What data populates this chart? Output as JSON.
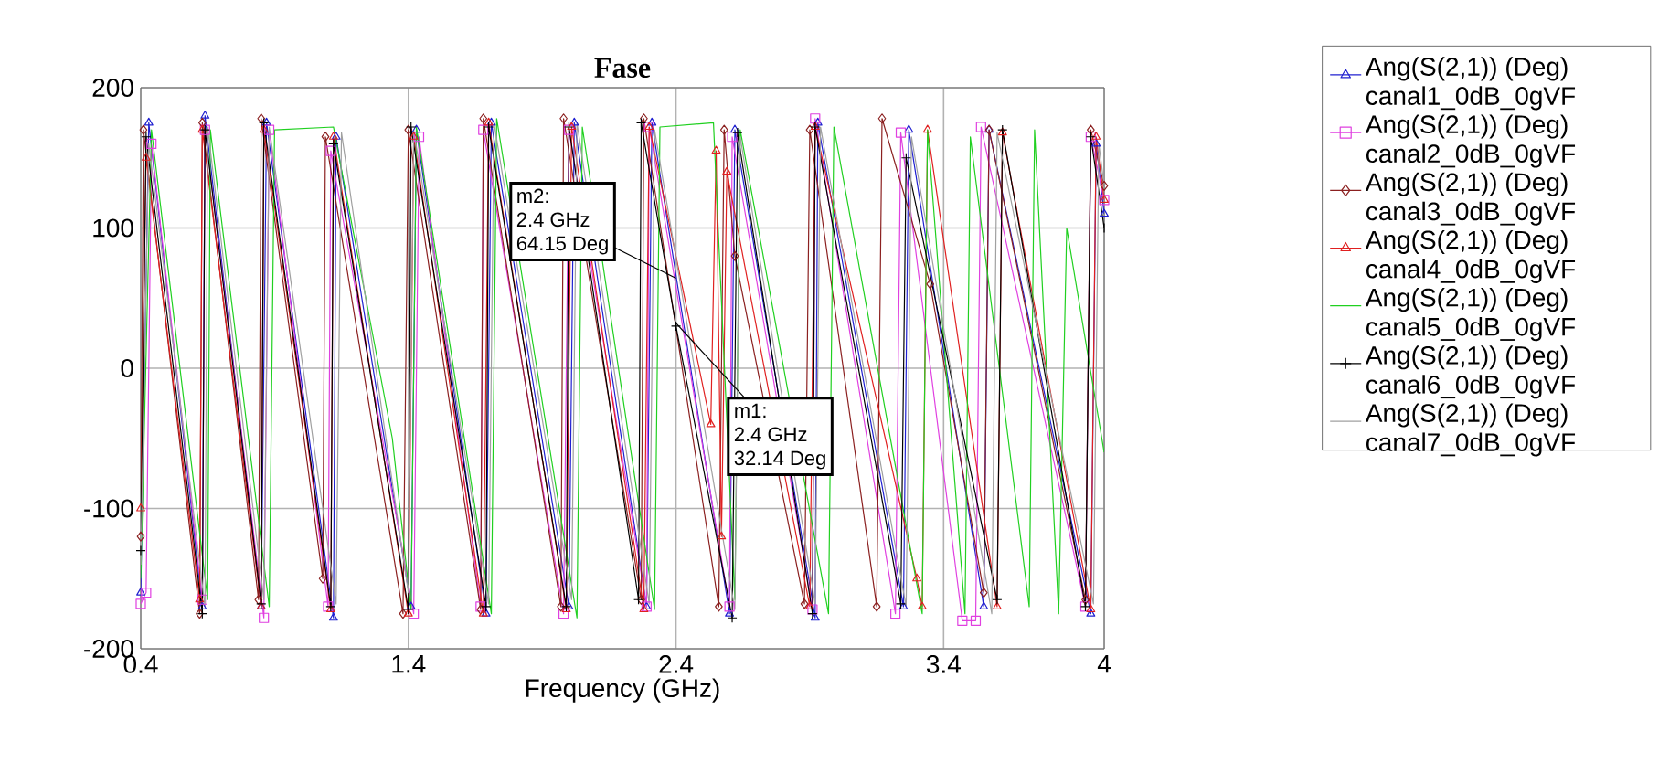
{
  "chart_data": {
    "type": "line",
    "title": "Fase",
    "xlabel": "Frequency (GHz)",
    "xlim": [
      0.4,
      4
    ],
    "ylim": [
      -200,
      200
    ],
    "xticks": [
      0.4,
      1.4,
      2.4,
      3.4,
      4
    ],
    "yticks": [
      -200,
      -100,
      0,
      100,
      200
    ],
    "grid": true,
    "legend": "right",
    "series": [
      {
        "name": "Ang(S(2,1)) (Deg) canal1_0dB_0gVF",
        "color": "#2020d0",
        "marker": "triangle",
        "x": [
          0.4,
          0.43,
          0.63,
          0.64,
          0.85,
          0.87,
          1.12,
          1.13,
          1.41,
          1.43,
          1.69,
          1.71,
          2.0,
          2.02,
          2.29,
          2.31,
          2.6,
          2.62,
          2.92,
          2.93,
          3.25,
          3.27,
          3.55,
          3.57,
          3.95,
          3.97,
          4.0
        ],
        "values": [
          -160,
          175,
          -170,
          180,
          -170,
          175,
          -178,
          165,
          -170,
          170,
          -175,
          175,
          -170,
          175,
          -170,
          175,
          -175,
          170,
          -178,
          175,
          -170,
          170,
          -170,
          170,
          -175,
          160,
          110
        ]
      },
      {
        "name": "Ang(S(2,1)) (Deg) canal2_0dB_0gVF",
        "color": "#e040e0",
        "marker": "square",
        "x": [
          0.4,
          0.42,
          0.44,
          0.63,
          0.64,
          0.86,
          0.88,
          1.1,
          1.11,
          1.42,
          1.44,
          1.67,
          1.68,
          1.98,
          2.0,
          2.29,
          2.3,
          2.6,
          2.61,
          2.91,
          2.92,
          3.22,
          3.24,
          3.47,
          3.52,
          3.54,
          3.93,
          3.95,
          4.0
        ],
        "values": [
          -168,
          -160,
          160,
          -165,
          170,
          -178,
          170,
          -170,
          155,
          -175,
          165,
          -170,
          170,
          -175,
          170,
          -170,
          172,
          -170,
          165,
          -172,
          178,
          -175,
          168,
          -180,
          -180,
          172,
          -170,
          165,
          120
        ]
      },
      {
        "name": "Ang(S(2,1)) (Deg) canal3_0dB_0gVF",
        "color": "#8b2020",
        "marker": "diamond",
        "x": [
          0.4,
          0.41,
          0.62,
          0.63,
          0.84,
          0.85,
          1.08,
          1.09,
          1.38,
          1.4,
          1.67,
          1.68,
          1.97,
          1.98,
          2.27,
          2.28,
          2.56,
          2.58,
          2.62,
          2.88,
          2.9,
          3.15,
          3.17,
          3.35,
          3.55,
          3.57,
          3.93,
          3.95,
          4.0
        ],
        "values": [
          -120,
          170,
          -175,
          175,
          -165,
          178,
          -150,
          165,
          -175,
          170,
          -172,
          178,
          -170,
          178,
          -165,
          178,
          -170,
          170,
          80,
          -168,
          170,
          -170,
          178,
          60,
          -160,
          170,
          -165,
          170,
          130
        ]
      },
      {
        "name": "Ang(S(2,1)) (Deg) canal4_0dB_0gVF",
        "color": "#e02020",
        "marker": "triangle",
        "x": [
          0.4,
          0.42,
          0.62,
          0.63,
          0.85,
          0.86,
          1.11,
          1.12,
          1.4,
          1.42,
          1.68,
          1.7,
          1.99,
          2.01,
          2.28,
          2.3,
          2.53,
          2.55,
          2.57,
          2.59,
          2.9,
          2.92,
          3.3,
          3.32,
          3.34,
          3.6,
          3.62,
          3.95,
          3.97,
          4.0
        ],
        "values": [
          -100,
          150,
          -165,
          170,
          -170,
          170,
          -172,
          165,
          -175,
          165,
          -175,
          175,
          -172,
          172,
          -172,
          172,
          -40,
          155,
          -120,
          140,
          -170,
          172,
          -150,
          -170,
          170,
          -170,
          168,
          -172,
          165,
          120
        ]
      },
      {
        "name": "Ang(S(2,1)) (Deg) canal5_0dB_0gVF",
        "color": "#20d020",
        "marker": "none",
        "x": [
          0.4,
          0.44,
          0.65,
          0.66,
          0.88,
          0.9,
          1.12,
          1.34,
          1.41,
          1.43,
          1.71,
          1.73,
          2.03,
          2.05,
          2.32,
          2.34,
          2.54,
          2.62,
          2.64,
          2.97,
          2.99,
          3.32,
          3.34,
          3.48,
          3.5,
          3.72,
          3.74,
          3.83,
          3.86,
          4.0
        ],
        "values": [
          -150,
          170,
          -165,
          170,
          -170,
          170,
          172,
          -50,
          -172,
          172,
          -175,
          178,
          -178,
          172,
          -172,
          172,
          175,
          -165,
          170,
          -175,
          172,
          -175,
          170,
          -175,
          165,
          -170,
          170,
          -175,
          100,
          -60
        ]
      },
      {
        "name": "Ang(S(2,1)) (Deg) canal6_0dB_0gVF",
        "color": "#000000",
        "marker": "cross",
        "x": [
          0.4,
          0.42,
          0.63,
          0.64,
          0.85,
          0.86,
          1.11,
          1.12,
          1.4,
          1.41,
          1.69,
          1.7,
          1.99,
          2.0,
          2.26,
          2.27,
          2.4,
          2.61,
          2.63,
          2.91,
          2.92,
          3.24,
          3.26,
          3.6,
          3.62,
          3.93,
          3.95,
          4.0
        ],
        "values": [
          -130,
          165,
          -175,
          170,
          -168,
          175,
          -170,
          160,
          -172,
          172,
          -170,
          172,
          -170,
          172,
          -165,
          175,
          30,
          -178,
          168,
          -175,
          172,
          -168,
          150,
          -165,
          170,
          -170,
          165,
          100
        ]
      },
      {
        "name": "Ang(S(2,1)) (Deg) canal7_0dB_0gVF",
        "color": "#a0a0a0",
        "marker": "none",
        "x": [
          0.4,
          0.43,
          0.64,
          0.65,
          0.86,
          0.88,
          1.13,
          1.15,
          1.4,
          1.42,
          1.7,
          1.72,
          2.01,
          2.03,
          2.3,
          2.32,
          2.62,
          2.64,
          2.92,
          2.94,
          3.26,
          3.28,
          3.58,
          3.6,
          3.96,
          3.98,
          4.0
        ],
        "values": [
          -140,
          160,
          -170,
          172,
          -165,
          172,
          -168,
          168,
          -160,
          170,
          -168,
          175,
          -165,
          175,
          -168,
          170,
          -172,
          165,
          -168,
          172,
          -170,
          165,
          -175,
          168,
          -168,
          160,
          130
        ]
      }
    ],
    "annotations": [
      {
        "text": "m2:",
        "x": 2.4,
        "y": 64.15
      },
      "2.4 GHz",
      "64.15 Deg",
      {
        "text": "m1:",
        "x": 2.4,
        "y": 32.14
      },
      "2.4 GHz",
      "32.14 Deg"
    ]
  }
}
